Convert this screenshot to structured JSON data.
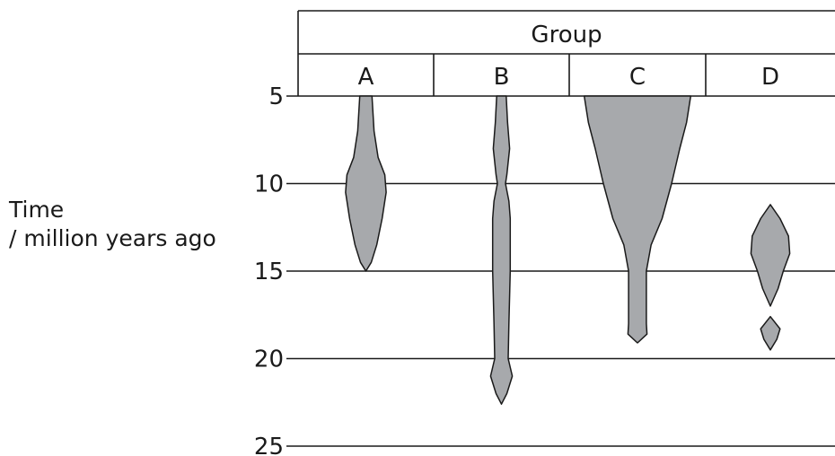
{
  "chart_data": {
    "type": "spindle",
    "header": "Group",
    "categories": [
      "A",
      "B",
      "C",
      "D"
    ],
    "ylabel_lines": [
      "Time",
      "/ million years ago"
    ],
    "yticks": [
      5,
      10,
      15,
      20,
      25
    ],
    "ylim": [
      5,
      25
    ],
    "y_inverted": true,
    "grid": true,
    "fill_color": "#a7a9ac",
    "line_color": "#1a1a1a",
    "series": [
      {
        "category": "A",
        "shapes": [
          {
            "profile": [
              [
                5,
                0.09
              ],
              [
                7,
                0.12
              ],
              [
                8.5,
                0.18
              ],
              [
                9.5,
                0.28
              ],
              [
                10.5,
                0.3
              ],
              [
                12,
                0.24
              ],
              [
                13.5,
                0.16
              ],
              [
                14.5,
                0.08
              ],
              [
                15,
                0
              ]
            ]
          }
        ]
      },
      {
        "category": "B",
        "shapes": [
          {
            "profile": [
              [
                5,
                0.07
              ],
              [
                6.5,
                0.09
              ],
              [
                8,
                0.12
              ],
              [
                9.5,
                0.08
              ],
              [
                10,
                0.06
              ],
              [
                11,
                0.11
              ],
              [
                12,
                0.13
              ],
              [
                15,
                0.13
              ],
              [
                18,
                0.11
              ],
              [
                20,
                0.1
              ],
              [
                21,
                0.16
              ],
              [
                22,
                0.08
              ],
              [
                22.6,
                0
              ]
            ]
          }
        ]
      },
      {
        "category": "C",
        "shapes": [
          {
            "profile": [
              [
                5,
                0.78
              ],
              [
                6.5,
                0.72
              ],
              [
                8,
                0.62
              ],
              [
                10,
                0.5
              ],
              [
                12,
                0.36
              ],
              [
                13.5,
                0.2
              ],
              [
                15,
                0.13
              ],
              [
                18,
                0.13
              ],
              [
                18.6,
                0.14
              ],
              [
                19.1,
                0
              ]
            ]
          }
        ]
      },
      {
        "category": "D",
        "shapes": [
          {
            "profile": [
              [
                11.2,
                0
              ],
              [
                12,
                0.15
              ],
              [
                13,
                0.28
              ],
              [
                14,
                0.3
              ],
              [
                15,
                0.2
              ],
              [
                16,
                0.12
              ],
              [
                17,
                0
              ]
            ]
          },
          {
            "profile": [
              [
                17.6,
                0
              ],
              [
                18.3,
                0.15
              ],
              [
                18.9,
                0.1
              ],
              [
                19.5,
                0
              ]
            ]
          }
        ]
      }
    ]
  }
}
